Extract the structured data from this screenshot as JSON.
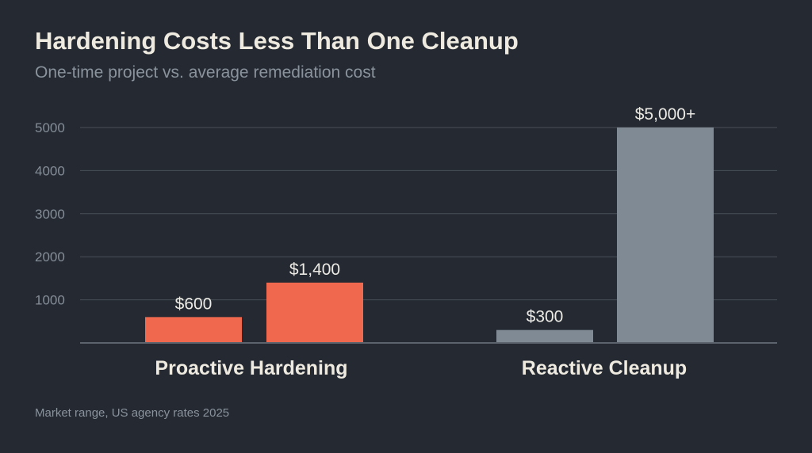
{
  "header": {
    "title": "Hardening Costs Less Than One Cleanup",
    "subtitle": "One-time project vs. average remediation cost"
  },
  "footer": {
    "note": "Market range, US agency rates 2025"
  },
  "colors": {
    "background": "#242932",
    "grid": "#4a5058",
    "axis": "#5c636c",
    "proactive": "#f0694e",
    "reactive": "#7f8a95"
  },
  "chart_data": {
    "type": "bar",
    "categories": [
      "Proactive Hardening",
      "Reactive Cleanup"
    ],
    "bars": [
      {
        "category": "Proactive Hardening",
        "value": 600,
        "label": "$600",
        "color": "#f0694e"
      },
      {
        "category": "Proactive Hardening",
        "value": 1400,
        "label": "$1,400",
        "color": "#f0694e"
      },
      {
        "category": "Reactive Cleanup",
        "value": 300,
        "label": "$300",
        "color": "#7f8a95"
      },
      {
        "category": "Reactive Cleanup",
        "value": 5000,
        "label": "$5,000+",
        "color": "#7f8a95"
      }
    ],
    "yticks": [
      1000,
      2000,
      3000,
      4000,
      5000
    ],
    "ylim": [
      0,
      5000
    ],
    "grid": true,
    "legend": "none"
  }
}
